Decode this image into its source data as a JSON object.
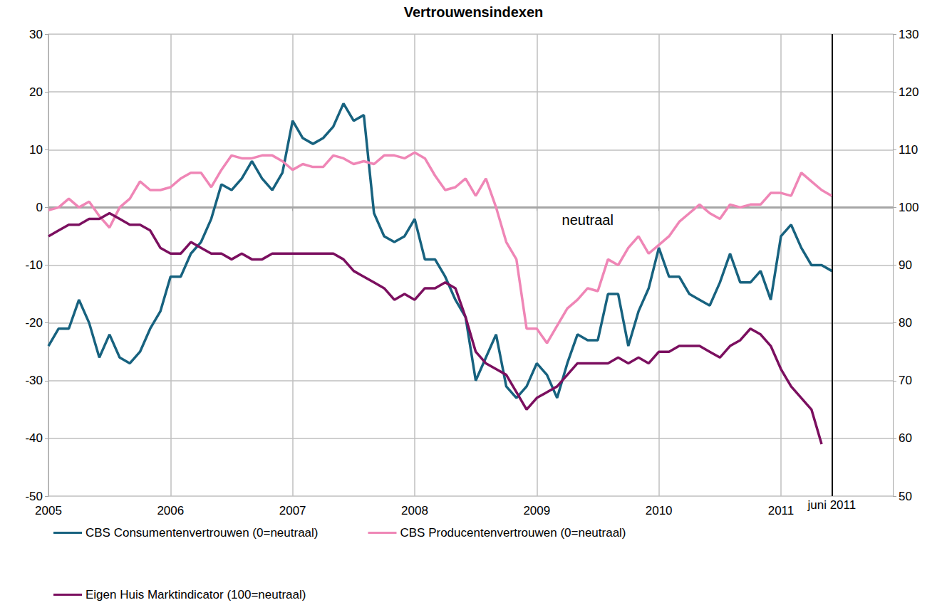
{
  "chart_data": {
    "type": "line",
    "title": "Vertrouwensindexen",
    "categories": [
      "2005",
      null,
      null,
      null,
      null,
      null,
      null,
      null,
      null,
      null,
      null,
      null,
      "2006",
      null,
      null,
      null,
      null,
      null,
      null,
      null,
      null,
      null,
      null,
      null,
      "2007",
      null,
      null,
      null,
      null,
      null,
      null,
      null,
      null,
      null,
      null,
      null,
      "2008",
      null,
      null,
      null,
      null,
      null,
      null,
      null,
      null,
      null,
      null,
      null,
      "2009",
      null,
      null,
      null,
      null,
      null,
      null,
      null,
      null,
      null,
      null,
      null,
      "2010",
      null,
      null,
      null,
      null,
      null,
      null,
      null,
      null,
      null,
      null,
      null,
      "2011",
      null,
      null,
      null,
      null,
      null,
      null,
      null,
      null,
      null,
      null,
      null
    ],
    "series": [
      {
        "name": "CBS Consumentenvertrouwen (0=neutraal)",
        "color": "#17627f",
        "axis": "y",
        "values": [
          -24,
          -21,
          -21,
          -16,
          -20,
          -26,
          -22,
          -26,
          -27,
          -25,
          -21,
          -18,
          -12,
          -12,
          -8,
          -6,
          -2,
          4,
          3,
          5,
          8,
          5,
          3,
          6,
          15,
          12,
          11,
          12,
          14,
          18,
          15,
          16,
          -1,
          -5,
          -6,
          -5,
          -2,
          -9,
          -9,
          -12,
          -16,
          -19,
          -30,
          -26,
          -22,
          -31,
          -33,
          -31,
          -27,
          -29,
          -33,
          -27,
          -22,
          -23,
          -23,
          -15,
          -15,
          -24,
          -18,
          -14,
          -7,
          -12,
          -12,
          -15,
          -16,
          -17,
          -13,
          -8,
          -13,
          -13,
          -11,
          -16,
          -5,
          -3,
          -7,
          -10,
          -10,
          -11,
          null,
          null,
          null,
          null,
          null,
          null
        ]
      },
      {
        "name": "CBS Producentenvertrouwen (0=neutraal)",
        "color": "#ef86b6",
        "axis": "y",
        "values": [
          -0.5,
          0,
          1.5,
          0,
          1,
          -1.5,
          -3.5,
          0,
          1.5,
          4.5,
          3,
          3,
          3.5,
          5,
          6,
          6,
          3.5,
          6.5,
          9,
          8.5,
          8.5,
          9,
          9,
          8,
          6.5,
          7.5,
          7,
          7,
          9,
          8.5,
          7.5,
          8,
          7.5,
          9,
          9,
          8.5,
          9.5,
          8.5,
          5.5,
          3,
          3.5,
          5,
          2,
          5,
          0,
          -6,
          -9,
          -21,
          -21,
          -23.5,
          -20.5,
          -17.5,
          -16,
          -14,
          -14.5,
          -9,
          -10,
          -7,
          -5,
          -8,
          -6.5,
          -5,
          -2.5,
          -1,
          0.5,
          -1,
          -2,
          0.5,
          0,
          0.5,
          0.5,
          2.5,
          2.5,
          2,
          6,
          4.5,
          3,
          2,
          null,
          null,
          null,
          null,
          null,
          null
        ]
      },
      {
        "name": "Eigen Huis Marktindicator (100=neutraal)",
        "color": "#7b0f5f",
        "axis": "y2",
        "values": [
          95,
          96,
          97,
          97,
          98,
          98,
          99,
          98,
          97,
          97,
          96,
          93,
          92,
          92,
          94,
          93,
          92,
          92,
          91,
          92,
          91,
          91,
          92,
          92,
          92,
          92,
          92,
          92,
          92,
          91,
          89,
          88,
          87,
          86,
          84,
          85,
          84,
          86,
          86,
          87,
          86,
          81,
          75,
          73,
          72,
          71,
          68,
          65,
          67,
          68,
          69,
          71,
          73,
          73,
          73,
          73,
          74,
          73,
          74,
          73,
          75,
          75,
          76,
          76,
          76,
          75,
          74,
          76,
          77,
          79,
          78,
          76,
          72,
          69,
          67,
          65,
          59,
          null,
          null,
          null,
          null,
          null,
          null,
          null
        ]
      }
    ],
    "ylim": [
      -50,
      30
    ],
    "yticks": [
      -50,
      -40,
      -30,
      -20,
      -10,
      0,
      10,
      20,
      30
    ],
    "y2lim": [
      50,
      130
    ],
    "y2ticks": [
      50,
      60,
      70,
      80,
      90,
      100,
      110,
      120,
      130
    ],
    "annotations": [
      {
        "type": "hline",
        "y": 0,
        "x": 53,
        "text": "neutraal"
      },
      {
        "type": "vline",
        "x": 77,
        "text": "juni 2011"
      }
    ],
    "grid": true,
    "legend": "bottom"
  }
}
